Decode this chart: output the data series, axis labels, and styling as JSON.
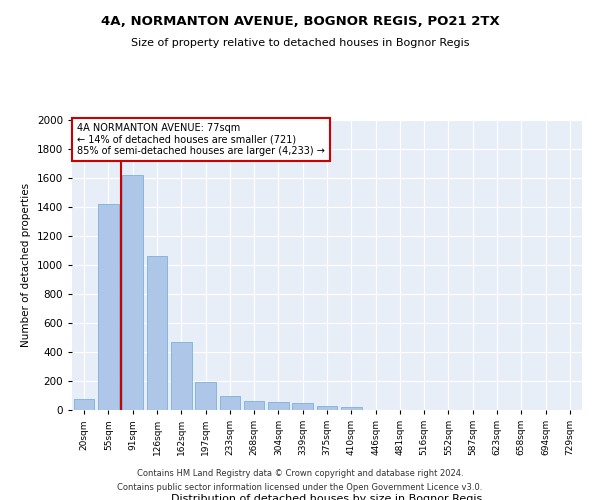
{
  "title1": "4A, NORMANTON AVENUE, BOGNOR REGIS, PO21 2TX",
  "title2": "Size of property relative to detached houses in Bognor Regis",
  "xlabel": "Distribution of detached houses by size in Bognor Regis",
  "ylabel": "Number of detached properties",
  "bin_labels": [
    "20sqm",
    "55sqm",
    "91sqm",
    "126sqm",
    "162sqm",
    "197sqm",
    "233sqm",
    "268sqm",
    "304sqm",
    "339sqm",
    "375sqm",
    "410sqm",
    "446sqm",
    "481sqm",
    "516sqm",
    "552sqm",
    "587sqm",
    "623sqm",
    "658sqm",
    "694sqm",
    "729sqm"
  ],
  "bar_values": [
    75,
    1420,
    1620,
    1060,
    470,
    195,
    100,
    60,
    55,
    50,
    30,
    20,
    0,
    0,
    0,
    0,
    0,
    0,
    0,
    0,
    0
  ],
  "bar_color": "#aec6e8",
  "bar_edge_color": "#6aaad4",
  "background_color": "#e8eef8",
  "grid_color": "#ffffff",
  "annotation_text": "4A NORMANTON AVENUE: 77sqm\n← 14% of detached houses are smaller (721)\n85% of semi-detached houses are larger (4,233) →",
  "annotation_box_color": "#ffffff",
  "annotation_box_edge": "#cc0000",
  "red_line_color": "#cc0000",
  "ylim": [
    0,
    2000
  ],
  "yticks": [
    0,
    200,
    400,
    600,
    800,
    1000,
    1200,
    1400,
    1600,
    1800,
    2000
  ],
  "footer1": "Contains HM Land Registry data © Crown copyright and database right 2024.",
  "footer2": "Contains public sector information licensed under the Open Government Licence v3.0."
}
